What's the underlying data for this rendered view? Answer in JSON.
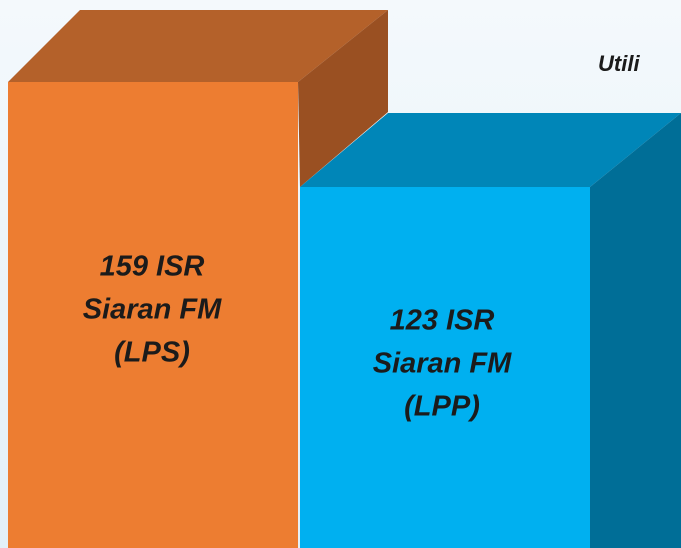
{
  "header": {
    "text": "Utili"
  },
  "boxes": [
    {
      "lines": [
        "159 ISR",
        "Siaran FM",
        "(LPS)"
      ]
    },
    {
      "lines": [
        "123 ISR",
        "Siaran FM",
        "(LPP)"
      ]
    }
  ]
}
